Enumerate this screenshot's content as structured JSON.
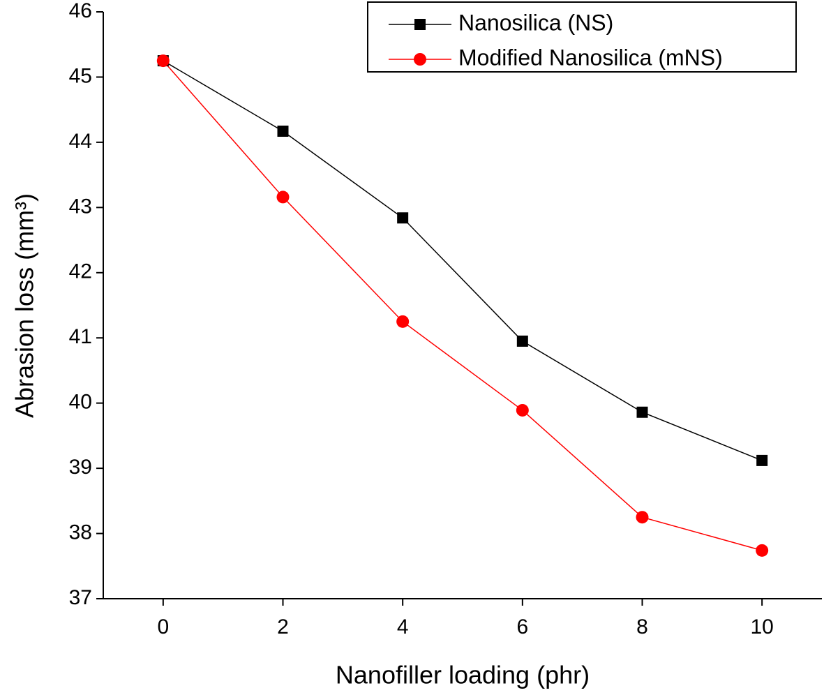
{
  "chart_data": {
    "type": "line",
    "x_label": "Nanofiller loading (phr)",
    "y_label": "Abrasion loss (mm³)",
    "x": [
      0,
      2,
      4,
      6,
      8,
      10
    ],
    "series": [
      {
        "name": "Nanosilica (NS)",
        "color": "#000000",
        "marker": "square",
        "values": [
          45.25,
          44.17,
          42.84,
          40.95,
          39.86,
          39.12
        ]
      },
      {
        "name": "Modified Nanosilica (mNS)",
        "color": "#ff0000",
        "marker": "circle",
        "values": [
          45.25,
          43.16,
          41.25,
          39.89,
          38.25,
          37.74
        ]
      }
    ],
    "xlim": [
      -1,
      11
    ],
    "xticks": [
      0,
      2,
      4,
      6,
      8,
      10
    ],
    "ylim": [
      37,
      46
    ],
    "yticks": [
      37,
      38,
      39,
      40,
      41,
      42,
      43,
      44,
      45,
      46
    ],
    "legend": "top-right",
    "grid": false
  }
}
